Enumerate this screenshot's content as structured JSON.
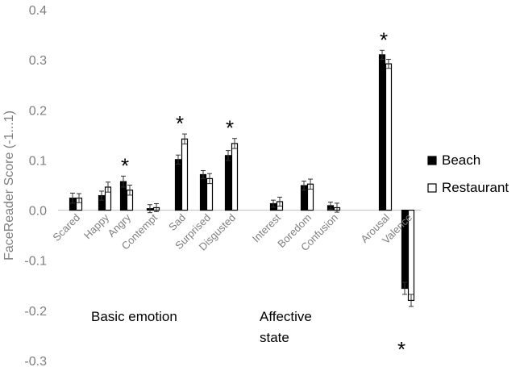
{
  "chart_data": {
    "type": "bar",
    "ylabel": "FaceReader Score (-1...1)",
    "ylim": [
      -0.3,
      0.4
    ],
    "yticks": [
      "-0.3",
      "-0.2",
      "-0.1",
      "0.0",
      "0.1",
      "0.2",
      "0.3",
      "0.4"
    ],
    "categories": [
      "Scared",
      "Happy",
      "Angry",
      "Contempt",
      "Sad",
      "Surprised",
      "Disgusted",
      "Interest",
      "Boredom",
      "Confusion",
      "Arousal",
      "Valence"
    ],
    "series": [
      {
        "name": "Beach",
        "color": "#000000",
        "values": [
          0.024,
          0.029,
          0.057,
          0.003,
          0.101,
          0.071,
          0.109,
          0.013,
          0.049,
          0.009,
          0.31,
          -0.156
        ],
        "errors": [
          0.01,
          0.009,
          0.011,
          0.008,
          0.009,
          0.008,
          0.01,
          0.007,
          0.009,
          0.007,
          0.009,
          0.012
        ]
      },
      {
        "name": "Restaurant",
        "color": "#ffffff",
        "values": [
          0.024,
          0.046,
          0.04,
          0.005,
          0.142,
          0.063,
          0.133,
          0.017,
          0.052,
          0.005,
          0.292,
          -0.18
        ],
        "errors": [
          0.009,
          0.01,
          0.01,
          0.008,
          0.01,
          0.01,
          0.01,
          0.009,
          0.01,
          0.009,
          0.009,
          0.012
        ]
      }
    ],
    "significant_categories": [
      "Angry",
      "Sad",
      "Disgusted",
      "Arousal",
      "Valence"
    ],
    "significance_marker": "*",
    "category_groups": [
      "Basic emotion",
      "Affective\nstate"
    ],
    "legend": {
      "position": "right"
    },
    "grid": false
  }
}
